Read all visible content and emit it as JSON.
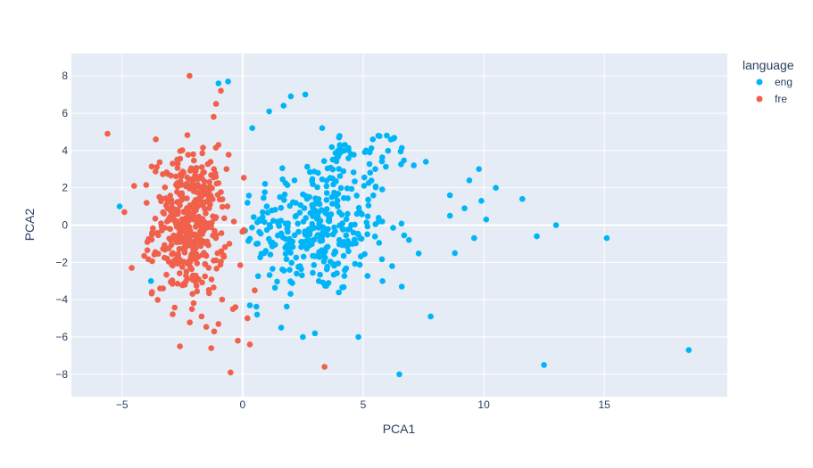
{
  "chart_data": {
    "type": "scatter",
    "title": "",
    "xlabel": "PCA1",
    "ylabel": "PCA2",
    "xlim": [
      -7.1,
      20.1
    ],
    "ylim": [
      -9.2,
      9.2
    ],
    "xticks": [
      -5,
      0,
      5,
      10,
      15
    ],
    "yticks": [
      -8,
      -6,
      -4,
      -2,
      0,
      2,
      4,
      6,
      8
    ],
    "grid": true,
    "legend": {
      "title": "language",
      "position": "top-right"
    },
    "series": [
      {
        "name": "eng",
        "color": "#00b5f7",
        "points": []
      },
      {
        "name": "fre",
        "color": "#f0604a",
        "points": []
      }
    ]
  }
}
